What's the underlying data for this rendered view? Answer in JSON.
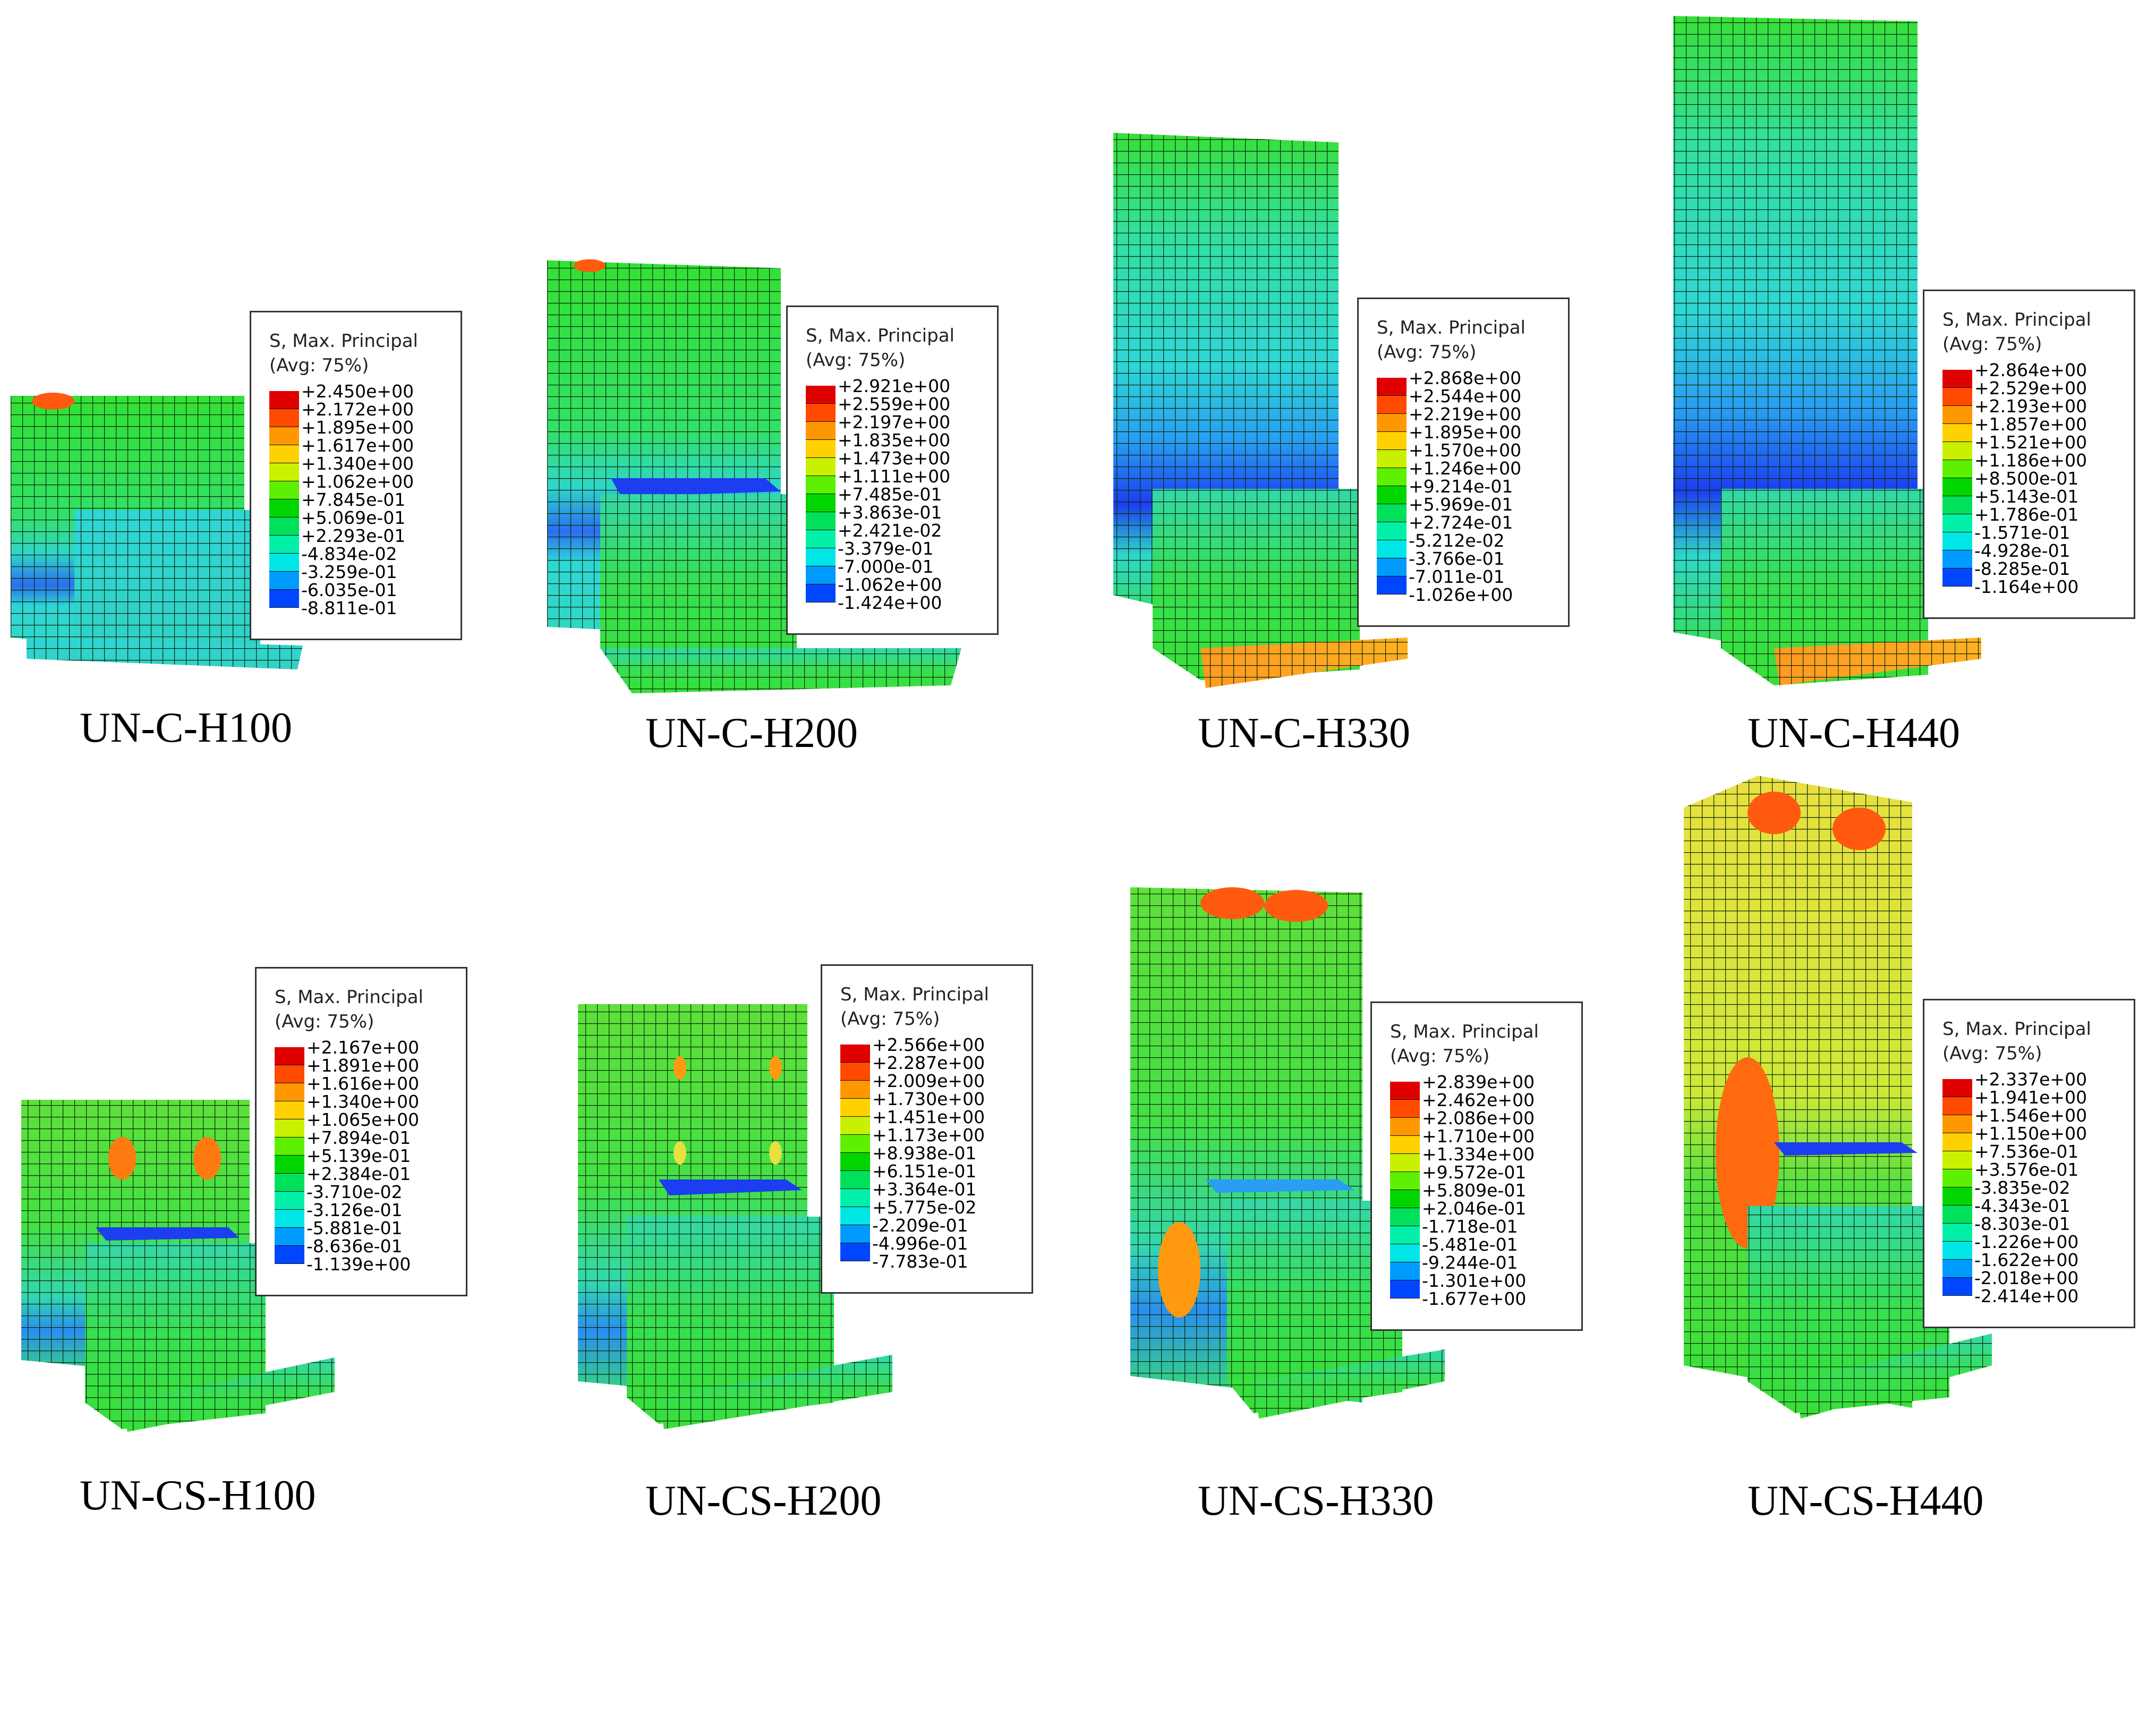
{
  "scale_colors": [
    "#e00000",
    "#ff4a00",
    "#ff9800",
    "#ffd100",
    "#c9f000",
    "#5ef000",
    "#00d500",
    "#00e05a",
    "#00f0a8",
    "#00e6e6",
    "#009bff",
    "#0046ff",
    "#0000e6"
  ],
  "panels": [
    {
      "caption": "UN-C-H100",
      "legend_title": "S, Max. Principal",
      "legend_subtitle": "(Avg: 75%)",
      "values": [
        "+2.450e+00",
        "+2.172e+00",
        "+1.895e+00",
        "+1.617e+00",
        "+1.340e+00",
        "+1.062e+00",
        "+7.845e-01",
        "+5.069e-01",
        "+2.293e-01",
        "-4.834e-02",
        "-3.259e-01",
        "-6.035e-01",
        "-8.811e-01"
      ]
    },
    {
      "caption": "UN-C-H200",
      "legend_title": "S, Max. Principal",
      "legend_subtitle": "(Avg: 75%)",
      "values": [
        "+2.921e+00",
        "+2.559e+00",
        "+2.197e+00",
        "+1.835e+00",
        "+1.473e+00",
        "+1.111e+00",
        "+7.485e-01",
        "+3.863e-01",
        "+2.421e-02",
        "-3.379e-01",
        "-7.000e-01",
        "-1.062e+00",
        "-1.424e+00"
      ]
    },
    {
      "caption": "UN-C-H330",
      "legend_title": "S, Max. Principal",
      "legend_subtitle": "(Avg: 75%)",
      "values": [
        "+2.868e+00",
        "+2.544e+00",
        "+2.219e+00",
        "+1.895e+00",
        "+1.570e+00",
        "+1.246e+00",
        "+9.214e-01",
        "+5.969e-01",
        "+2.724e-01",
        "-5.212e-02",
        "-3.766e-01",
        "-7.011e-01",
        "-1.026e+00"
      ]
    },
    {
      "caption": "UN-C-H440",
      "legend_title": "S, Max. Principal",
      "legend_subtitle": "(Avg: 75%)",
      "values": [
        "+2.864e+00",
        "+2.529e+00",
        "+2.193e+00",
        "+1.857e+00",
        "+1.521e+00",
        "+1.186e+00",
        "+8.500e-01",
        "+5.143e-01",
        "+1.786e-01",
        "-1.571e-01",
        "-4.928e-01",
        "-8.285e-01",
        "-1.164e+00"
      ]
    },
    {
      "caption": "UN-CS-H100",
      "legend_title": "S, Max. Principal",
      "legend_subtitle": "(Avg: 75%)",
      "values": [
        "+2.167e+00",
        "+1.891e+00",
        "+1.616e+00",
        "+1.340e+00",
        "+1.065e+00",
        "+7.894e-01",
        "+5.139e-01",
        "+2.384e-01",
        "-3.710e-02",
        "-3.126e-01",
        "-5.881e-01",
        "-8.636e-01",
        "-1.139e+00"
      ]
    },
    {
      "caption": "UN-CS-H200",
      "legend_title": "S, Max. Principal",
      "legend_subtitle": "(Avg: 75%)",
      "values": [
        "+2.566e+00",
        "+2.287e+00",
        "+2.009e+00",
        "+1.730e+00",
        "+1.451e+00",
        "+1.173e+00",
        "+8.938e-01",
        "+6.151e-01",
        "+3.364e-01",
        "+5.775e-02",
        "-2.209e-01",
        "-4.996e-01",
        "-7.783e-01"
      ]
    },
    {
      "caption": "UN-CS-H330",
      "legend_title": "S, Max. Principal",
      "legend_subtitle": "(Avg: 75%)",
      "values": [
        "+2.839e+00",
        "+2.462e+00",
        "+2.086e+00",
        "+1.710e+00",
        "+1.334e+00",
        "+9.572e-01",
        "+5.809e-01",
        "+2.046e-01",
        "-1.718e-01",
        "-5.481e-01",
        "-9.244e-01",
        "-1.301e+00",
        "-1.677e+00"
      ]
    },
    {
      "caption": "UN-CS-H440",
      "legend_title": "S, Max. Principal",
      "legend_subtitle": "(Avg: 75%)",
      "values": [
        "+2.337e+00",
        "+1.941e+00",
        "+1.546e+00",
        "+1.150e+00",
        "+7.536e-01",
        "+3.576e-01",
        "-3.835e-02",
        "-4.343e-01",
        "-8.303e-01",
        "-1.226e+00",
        "-1.622e+00",
        "-2.018e+00",
        "-2.414e+00"
      ]
    }
  ]
}
